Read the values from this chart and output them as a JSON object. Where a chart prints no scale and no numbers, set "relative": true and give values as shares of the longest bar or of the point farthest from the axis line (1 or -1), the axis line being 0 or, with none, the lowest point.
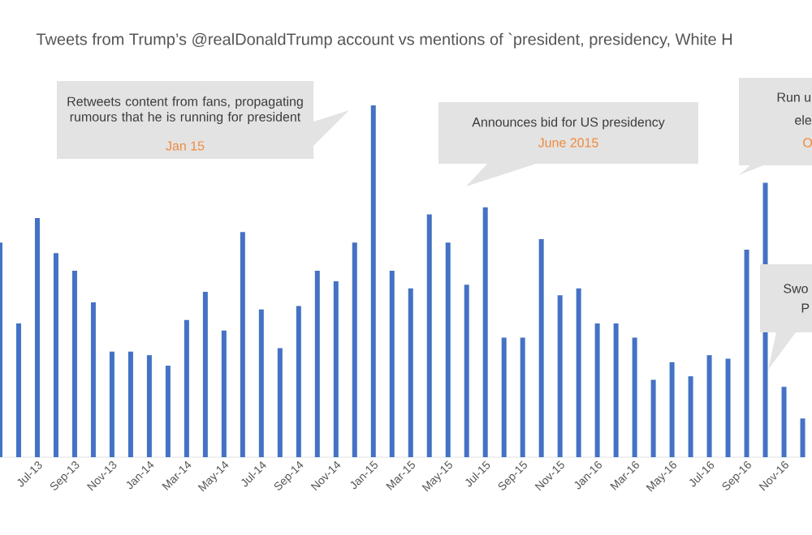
{
  "chart_data": {
    "type": "bar",
    "relative": true,
    "color": "#4472c4",
    "title": "Tweets from Trump’s @realDonaldTrump account vs mentions of `president, presidency, White H",
    "categories": [
      null,
      null,
      "Jul-13",
      null,
      "Sep-13",
      null,
      "Nov-13",
      null,
      "Jan-14",
      null,
      "Mar-14",
      null,
      "May-14",
      null,
      "Jul-14",
      null,
      "Sep-14",
      null,
      "Nov-14",
      null,
      "Jan-15",
      null,
      "Mar-15",
      null,
      "May-15",
      null,
      "Jul-15",
      null,
      "Sep-15",
      null,
      "Nov-15",
      null,
      "Jan-16",
      null,
      "Mar-16",
      null,
      "May-16",
      null,
      "Jul-16",
      null,
      "Sep-16",
      null,
      "Nov-16",
      null
    ],
    "values": [
      0.61,
      0.38,
      0.68,
      0.58,
      0.53,
      0.44,
      0.3,
      0.3,
      0.29,
      0.26,
      0.39,
      0.47,
      0.36,
      0.64,
      0.42,
      0.31,
      0.43,
      0.53,
      0.5,
      0.61,
      1,
      0.53,
      0.48,
      0.69,
      0.61,
      0.49,
      0.71,
      0.34,
      0.34,
      0.62,
      0.46,
      0.48,
      0.38,
      0.38,
      0.34,
      0.22,
      0.27,
      0.23,
      0.29,
      0.28,
      0.59,
      0.78,
      0.2,
      0.11
    ],
    "annotations": [
      "Retweets content from fans, propagating rumours that he is running for president",
      "Jan 15",
      "Announces bid for US presidency",
      "June 2015",
      "Run u",
      "ele",
      "O",
      "Swo",
      "P"
    ]
  }
}
